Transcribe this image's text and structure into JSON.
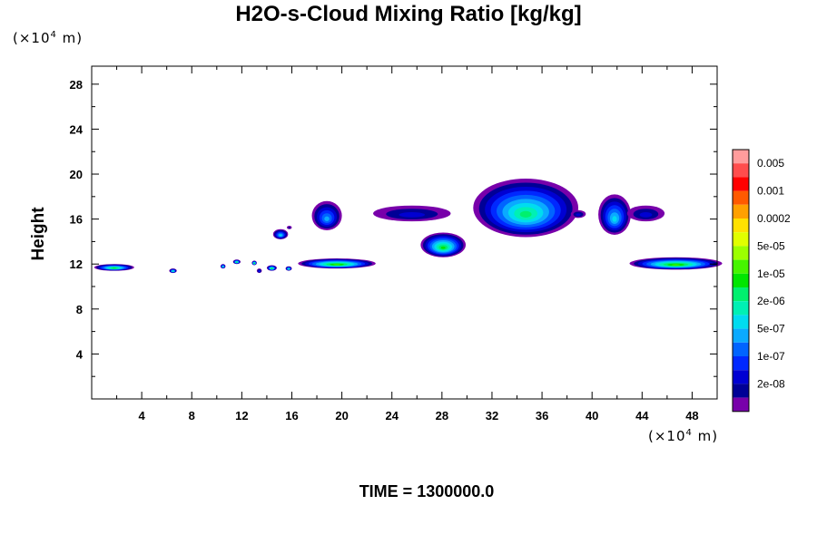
{
  "chart_data": {
    "type": "heatmap",
    "title": "H2O-s-Cloud Mixing Ratio [kg/kg]",
    "ylabel": "Height",
    "y_unit": {
      "prefix": "(×10",
      "exp": "4",
      "suffix": " m)"
    },
    "x_unit": {
      "prefix": "(×10",
      "exp": "4",
      "suffix": " m)"
    },
    "xlim": [
      0,
      50
    ],
    "ylim": [
      0,
      29.6
    ],
    "x_ticks": [
      4,
      8,
      12,
      16,
      20,
      24,
      28,
      32,
      36,
      40,
      44,
      48
    ],
    "y_ticks": [
      4,
      8,
      12,
      16,
      20,
      24,
      28
    ],
    "colorbar": {
      "labels": [
        "0.005",
        "0.001",
        "0.0002",
        "5e-05",
        "1e-05",
        "2e-06",
        "5e-07",
        "1e-07",
        "2e-08"
      ],
      "colors": [
        "#ff9c9c",
        "#ff4d4d",
        "#ff0000",
        "#ff5a00",
        "#ffa000",
        "#ffe100",
        "#e1ff00",
        "#9cff00",
        "#46f500",
        "#00e600",
        "#00f06e",
        "#00f0b4",
        "#00dcf0",
        "#0aaaff",
        "#0064ff",
        "#0028ff",
        "#0000d2",
        "#000096",
        "#7800aa"
      ]
    },
    "clouds": [
      {
        "x": 0.2,
        "y": 11.4,
        "w": 3.2,
        "h": 0.6,
        "level": 9
      },
      {
        "x": 6.2,
        "y": 11.2,
        "w": 0.6,
        "h": 0.4,
        "level": 10
      },
      {
        "x": 10.3,
        "y": 11.6,
        "w": 0.4,
        "h": 0.4,
        "level": 10
      },
      {
        "x": 11.3,
        "y": 12.0,
        "w": 0.6,
        "h": 0.4,
        "level": 9
      },
      {
        "x": 12.8,
        "y": 11.9,
        "w": 0.4,
        "h": 0.4,
        "level": 8
      },
      {
        "x": 13.2,
        "y": 11.2,
        "w": 0.4,
        "h": 0.4,
        "level": 15
      },
      {
        "x": 14.0,
        "y": 11.4,
        "w": 0.8,
        "h": 0.5,
        "level": 9
      },
      {
        "x": 15.5,
        "y": 11.4,
        "w": 0.5,
        "h": 0.4,
        "level": 10
      },
      {
        "x": 16.5,
        "y": 11.6,
        "w": 6.2,
        "h": 0.9,
        "level": 8
      },
      {
        "x": 14.5,
        "y": 14.2,
        "w": 1.2,
        "h": 0.9,
        "level": 12
      },
      {
        "x": 15.6,
        "y": 15.1,
        "w": 0.4,
        "h": 0.3,
        "level": 17
      },
      {
        "x": 17.6,
        "y": 15.0,
        "w": 2.4,
        "h": 2.6,
        "level": 13
      },
      {
        "x": 22.5,
        "y": 15.8,
        "w": 6.2,
        "h": 1.4,
        "level": 16
      },
      {
        "x": 26.3,
        "y": 12.6,
        "w": 3.6,
        "h": 2.2,
        "level": 9
      },
      {
        "x": 30.5,
        "y": 14.4,
        "w": 8.4,
        "h": 5.2,
        "level": 10
      },
      {
        "x": 38.3,
        "y": 16.1,
        "w": 1.2,
        "h": 0.7,
        "level": 16
      },
      {
        "x": 40.5,
        "y": 14.6,
        "w": 2.6,
        "h": 3.6,
        "level": 12
      },
      {
        "x": 42.8,
        "y": 15.8,
        "w": 3.0,
        "h": 1.4,
        "level": 16
      },
      {
        "x": 43.0,
        "y": 11.5,
        "w": 7.4,
        "h": 1.1,
        "level": 8
      }
    ]
  },
  "time_text": "TIME = 1300000.0"
}
